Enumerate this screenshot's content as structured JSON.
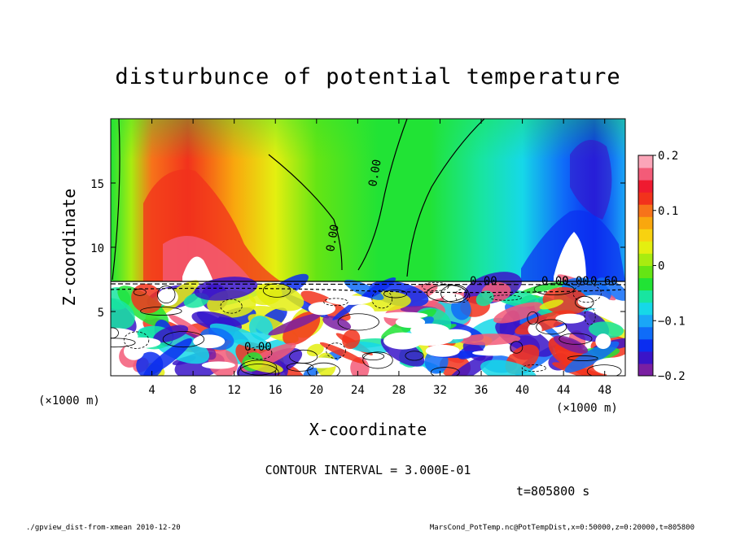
{
  "chart_data": {
    "type": "heatmap",
    "title": "disturbunce of potential temperature",
    "xlabel": "X-coordinate",
    "ylabel": "Z-coordinate",
    "x_unit_left": "(×1000 m)",
    "x_unit_right": "(×1000 m)",
    "xlim": [
      0,
      50
    ],
    "ylim": [
      0,
      20
    ],
    "x_ticks": [
      "4",
      "8",
      "12",
      "16",
      "20",
      "24",
      "28",
      "32",
      "36",
      "40",
      "44",
      "48"
    ],
    "y_ticks": [
      "5",
      "10",
      "15"
    ],
    "colorbar": {
      "range": [
        -0.2,
        0.2
      ],
      "tick_labels": [
        "0.2",
        "0.1",
        "0",
        "−0.1",
        "−0.2"
      ],
      "colors": [
        "#7a1fa2",
        "#3a14c8",
        "#0b2df0",
        "#0f6cf8",
        "#1aa7f7",
        "#16d8e8",
        "#18e5a0",
        "#21e335",
        "#65e514",
        "#a8ec10",
        "#e4ef10",
        "#f8d210",
        "#f9a70e",
        "#f7731a",
        "#f2321c",
        "#ef1a30",
        "#f35b78",
        "#fba5b8"
      ]
    },
    "contour_labels": [
      "0.00",
      "0.00",
      "0.00",
      "0.00",
      "0.00",
      "0.00",
      "0.60"
    ],
    "contour_interval_text": "CONTOUR INTERVAL = 3.000E-01",
    "time_text": "t=805800 s",
    "footer_left": "./gpview_dist-from-xmean   2010-12-20",
    "footer_right": "MarsCond_PotTemp.nc@PotTempDist,x=0:50000,z=0:20000,t=805800"
  }
}
